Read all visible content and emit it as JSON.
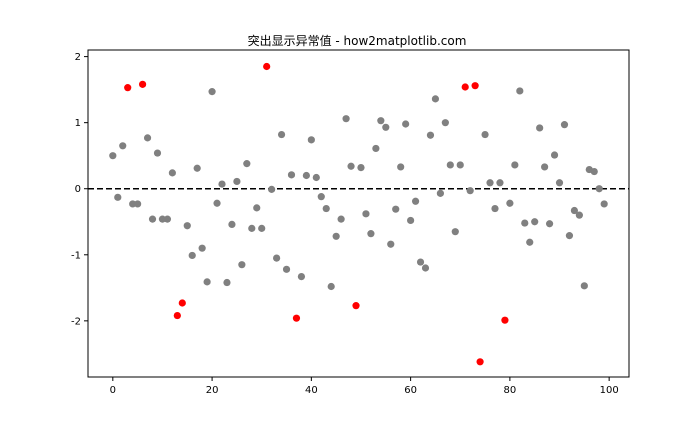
{
  "chart_data": {
    "type": "scatter",
    "title": "突出显示异常值 - how2matplotlib.com",
    "xlabel": "",
    "ylabel": "",
    "xlim": [
      -5,
      104
    ],
    "ylim": [
      -2.85,
      2.1
    ],
    "x_ticks": [
      0,
      20,
      40,
      60,
      80,
      100
    ],
    "y_ticks": [
      -2,
      -1,
      0,
      1,
      2
    ],
    "x_tick_labels": [
      "0",
      "20",
      "40",
      "60",
      "80",
      "100"
    ],
    "y_tick_labels": [
      "-2",
      "-1",
      "0",
      "1",
      "2"
    ],
    "grid": false,
    "reference_line": {
      "y": 0,
      "style": "dashed",
      "color": "#000000"
    },
    "colors": {
      "normal": "#808080",
      "outlier": "#ff0000"
    },
    "series": [
      {
        "color": "#808080",
        "points": [
          [
            0,
            0.5
          ],
          [
            1,
            -0.13
          ],
          [
            2,
            0.65
          ],
          [
            4,
            -0.23
          ],
          [
            5,
            -0.23
          ],
          [
            7,
            0.77
          ],
          [
            8,
            -0.46
          ],
          [
            9,
            0.54
          ],
          [
            10,
            -0.46
          ],
          [
            11,
            -0.46
          ],
          [
            12,
            0.24
          ],
          [
            15,
            -0.56
          ],
          [
            16,
            -1.01
          ],
          [
            17,
            0.31
          ],
          [
            18,
            -0.9
          ],
          [
            19,
            -1.41
          ],
          [
            20,
            1.47
          ],
          [
            21,
            -0.22
          ],
          [
            22,
            0.07
          ],
          [
            23,
            -1.42
          ],
          [
            24,
            -0.54
          ],
          [
            25,
            0.11
          ],
          [
            26,
            -1.15
          ],
          [
            27,
            0.38
          ],
          [
            28,
            -0.6
          ],
          [
            29,
            -0.29
          ],
          [
            30,
            -0.6
          ],
          [
            32,
            -0.01
          ],
          [
            33,
            -1.05
          ],
          [
            34,
            0.82
          ],
          [
            35,
            -1.22
          ],
          [
            36,
            0.21
          ],
          [
            38,
            -1.33
          ],
          [
            39,
            0.2
          ],
          [
            40,
            0.74
          ],
          [
            41,
            0.17
          ],
          [
            42,
            -0.12
          ],
          [
            43,
            -0.3
          ],
          [
            44,
            -1.48
          ],
          [
            45,
            -0.72
          ],
          [
            46,
            -0.46
          ],
          [
            47,
            1.06
          ],
          [
            48,
            0.34
          ],
          [
            50,
            0.32
          ],
          [
            51,
            -0.38
          ],
          [
            52,
            -0.68
          ],
          [
            53,
            0.61
          ],
          [
            54,
            1.03
          ],
          [
            55,
            0.93
          ],
          [
            56,
            -0.84
          ],
          [
            57,
            -0.31
          ],
          [
            58,
            0.33
          ],
          [
            59,
            0.98
          ],
          [
            60,
            -0.48
          ],
          [
            61,
            -0.19
          ],
          [
            62,
            -1.11
          ],
          [
            63,
            -1.2
          ],
          [
            64,
            0.81
          ],
          [
            65,
            1.36
          ],
          [
            66,
            -0.07
          ],
          [
            67,
            1.0
          ],
          [
            68,
            0.36
          ],
          [
            69,
            -0.65
          ],
          [
            70,
            0.36
          ],
          [
            72,
            -0.03
          ],
          [
            75,
            0.82
          ],
          [
            76,
            0.09
          ],
          [
            77,
            -0.3
          ],
          [
            78,
            0.09
          ],
          [
            80,
            -0.22
          ],
          [
            81,
            0.36
          ],
          [
            82,
            1.48
          ],
          [
            83,
            -0.52
          ],
          [
            84,
            -0.81
          ],
          [
            85,
            -0.5
          ],
          [
            86,
            0.92
          ],
          [
            87,
            0.33
          ],
          [
            88,
            -0.53
          ],
          [
            89,
            0.51
          ],
          [
            90,
            0.09
          ],
          [
            91,
            0.97
          ],
          [
            92,
            -0.71
          ],
          [
            93,
            -0.33
          ],
          [
            94,
            -0.4
          ],
          [
            95,
            -1.47
          ],
          [
            96,
            0.29
          ],
          [
            97,
            0.26
          ],
          [
            98,
            0.0
          ],
          [
            99,
            -0.23
          ]
        ]
      },
      {
        "color": "#ff0000",
        "points": [
          [
            3,
            1.53
          ],
          [
            6,
            1.58
          ],
          [
            13,
            -1.92
          ],
          [
            14,
            -1.73
          ],
          [
            31,
            1.85
          ],
          [
            37,
            -1.96
          ],
          [
            49,
            -1.77
          ],
          [
            71,
            1.54
          ],
          [
            73,
            1.56
          ],
          [
            74,
            -2.62
          ],
          [
            79,
            -1.99
          ]
        ]
      }
    ]
  }
}
